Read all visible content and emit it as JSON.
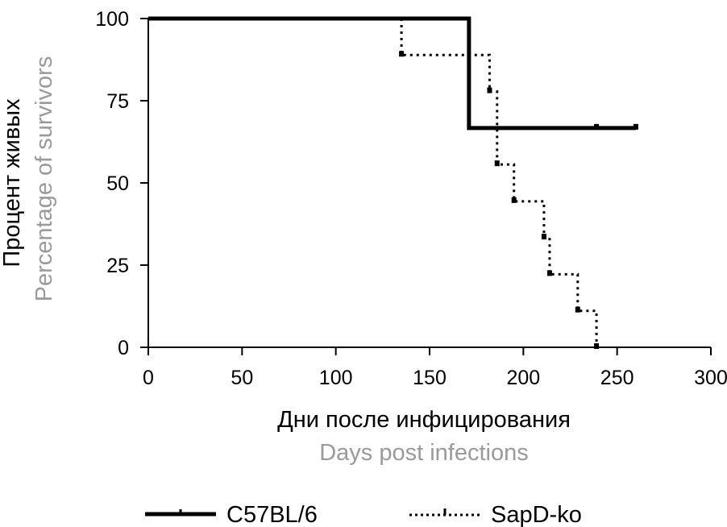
{
  "chart_data": {
    "type": "line",
    "subtype": "kaplan-meier survival curve",
    "ylabel_ru": "Процент живых",
    "ylabel_en": "Percentage of survivors",
    "xlabel_ru": "Дни после инфицирования",
    "xlabel_en": "Days post infections",
    "xlim": [
      0,
      300
    ],
    "ylim": [
      0,
      100
    ],
    "xticks": [
      0,
      50,
      100,
      150,
      200,
      250,
      300
    ],
    "yticks": [
      0,
      25,
      50,
      75,
      100
    ],
    "xtick_labels": [
      "0",
      "50",
      "100",
      "150",
      "200",
      "250",
      "300"
    ],
    "ytick_labels": [
      "0",
      "25",
      "50",
      "75",
      "100"
    ],
    "grid": false,
    "legend_position": "bottom",
    "series": [
      {
        "name": "C57BL/6",
        "style": "solid",
        "color": "#000000",
        "x": [
          0,
          171,
          171,
          260
        ],
        "y": [
          100,
          100,
          66.7,
          66.7
        ],
        "censored": [
          {
            "x": 239,
            "y": 66.7
          },
          {
            "x": 260,
            "y": 66.7
          }
        ]
      },
      {
        "name": "SapD-ko",
        "style": "dotted",
        "color": "#000000",
        "x": [
          135,
          135,
          182,
          182,
          186,
          186,
          195,
          195,
          211,
          211,
          214,
          214,
          229,
          229,
          239,
          239
        ],
        "y": [
          100,
          88.9,
          88.9,
          77.8,
          77.8,
          55.6,
          55.6,
          44.4,
          44.4,
          33.3,
          33.3,
          22.2,
          22.2,
          11.1,
          11.1,
          0
        ],
        "censored": [
          {
            "x": 135,
            "y": 88.9
          },
          {
            "x": 182,
            "y": 77.8
          },
          {
            "x": 186,
            "y": 55.6
          },
          {
            "x": 195,
            "y": 44.4
          },
          {
            "x": 211,
            "y": 33.3
          },
          {
            "x": 214,
            "y": 22.2
          },
          {
            "x": 229,
            "y": 11.1
          },
          {
            "x": 239,
            "y": 0
          }
        ]
      }
    ],
    "colors": {
      "primary_label": "#000000",
      "secondary_label": "#9a9a9a",
      "axis": "#000000"
    }
  }
}
